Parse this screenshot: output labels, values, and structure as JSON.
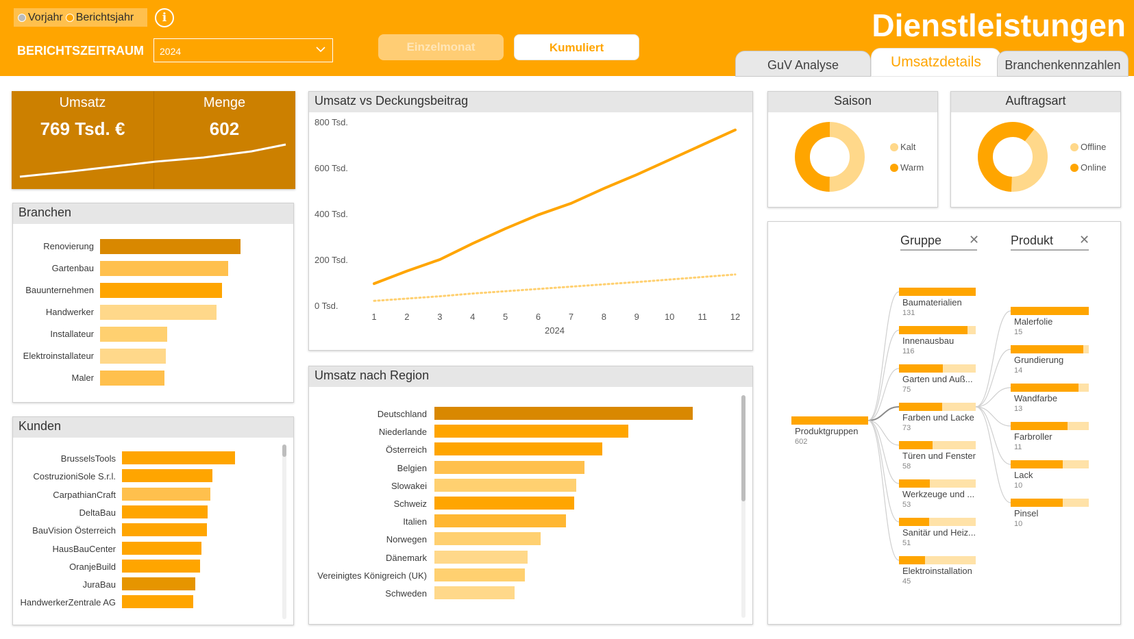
{
  "header": {
    "toggle_prev": "Vorjahr",
    "toggle_report": "Berichtsjahr",
    "info_icon": "i",
    "period_label": "BERICHTSZEITRAUM",
    "period_value": "2024",
    "btn_single": "Einzelmonat",
    "btn_cumulative": "Kumuliert",
    "title": "Dienstleistungen",
    "tabs": [
      {
        "label": "GuV Analyse"
      },
      {
        "label": "Umsatzdetails"
      },
      {
        "label": "Branchenkennzahlen"
      }
    ],
    "active_tab": "Umsatzdetails"
  },
  "colors": {
    "header_bg": "#FFA500",
    "dark": "#CC8000",
    "medium": "#FFA500",
    "light": "#FFC04D",
    "pale": "#FFD88A",
    "remainder": "#FFE2A8"
  },
  "kpi": {
    "umsatz_label": "Umsatz",
    "umsatz_value": "769 Tsd. €",
    "menge_label": "Menge",
    "menge_value": "602"
  },
  "branchen": {
    "title": "Branchen",
    "items": [
      {
        "label": "Renovierung",
        "value": 100,
        "color": "#D98800"
      },
      {
        "label": "Gartenbau",
        "value": 91,
        "color": "#FFC04D"
      },
      {
        "label": "Bauunternehmen",
        "value": 87,
        "color": "#FFA500"
      },
      {
        "label": "Handwerker",
        "value": 83,
        "color": "#FFD88A"
      },
      {
        "label": "Installateur",
        "value": 48,
        "color": "#FFD070"
      },
      {
        "label": "Elektroinstallateur",
        "value": 47,
        "color": "#FFD88A"
      },
      {
        "label": "Maler",
        "value": 46,
        "color": "#FFC04D"
      }
    ]
  },
  "kunden": {
    "title": "Kunden",
    "items": [
      {
        "label": "BrusselsTools",
        "value": 100,
        "color": "#FFA500"
      },
      {
        "label": "CostruzioniSole S.r.l.",
        "value": 80,
        "color": "#FFA500"
      },
      {
        "label": "CarpathianCraft",
        "value": 78,
        "color": "#FFC04D"
      },
      {
        "label": "DeltaBau",
        "value": 76,
        "color": "#FFA500"
      },
      {
        "label": "BauVision Österreich",
        "value": 75,
        "color": "#FFA500"
      },
      {
        "label": "HausBauCenter",
        "value": 70,
        "color": "#FFA500"
      },
      {
        "label": "OranjeBuild",
        "value": 69,
        "color": "#FFA500"
      },
      {
        "label": "JuraBau",
        "value": 65,
        "color": "#E69500"
      },
      {
        "label": "HandwerkerZentrale AG",
        "value": 63,
        "color": "#FFA500"
      }
    ]
  },
  "umsatz_chart": {
    "title": "Umsatz vs Deckungsbeitrag"
  },
  "chart_data": {
    "type": "line",
    "x": [
      1,
      2,
      3,
      4,
      5,
      6,
      7,
      8,
      9,
      10,
      11,
      12
    ],
    "xlabel": "2024",
    "ylim": [
      0,
      800000
    ],
    "yticks": [
      "0 Tsd.",
      "200 Tsd.",
      "400 Tsd.",
      "600 Tsd.",
      "800 Tsd."
    ],
    "series": [
      {
        "values": [
          95000,
          150000,
          200000,
          270000,
          335000,
          395000,
          445000,
          510000,
          570000,
          635000,
          700000,
          765000
        ],
        "style": "solid"
      },
      {
        "values": [
          20000,
          30000,
          40000,
          52000,
          62000,
          72000,
          82000,
          92000,
          102000,
          113000,
          124000,
          135000
        ],
        "style": "dotted"
      }
    ]
  },
  "saison": {
    "title": "Saison",
    "slices": [
      {
        "label": "Kalt",
        "value": 50,
        "color": "#FFD88A"
      },
      {
        "label": "Warm",
        "value": 50,
        "color": "#FFA500"
      }
    ]
  },
  "auftragsart": {
    "title": "Auftragsart",
    "slices": [
      {
        "label": "Offline",
        "value": 40,
        "color": "#FFD88A"
      },
      {
        "label": "Online",
        "value": 60,
        "color": "#FFA500"
      }
    ]
  },
  "region": {
    "title": "Umsatz nach Region",
    "items": [
      {
        "label": "Deutschland",
        "value": 100,
        "color": "#D98800"
      },
      {
        "label": "Niederlande",
        "value": 75,
        "color": "#FFA500"
      },
      {
        "label": "Österreich",
        "value": 65,
        "color": "#FFA500"
      },
      {
        "label": "Belgien",
        "value": 58,
        "color": "#FFC04D"
      },
      {
        "label": "Slowakei",
        "value": 55,
        "color": "#FFD070"
      },
      {
        "label": "Schweiz",
        "value": 54,
        "color": "#FFA500"
      },
      {
        "label": "Italien",
        "value": 51,
        "color": "#FFB732"
      },
      {
        "label": "Norwegen",
        "value": 41,
        "color": "#FFD070"
      },
      {
        "label": "Dänemark",
        "value": 36,
        "color": "#FFD88A"
      },
      {
        "label": "Vereinigtes Königreich (UK)",
        "value": 35,
        "color": "#FFD070"
      },
      {
        "label": "Schweden",
        "value": 31,
        "color": "#FFD88A"
      }
    ]
  },
  "decomposition": {
    "gruppe_header": "Gruppe",
    "produkt_header": "Produkt",
    "root": {
      "label": "Produktgruppen",
      "value": "602"
    },
    "gruppen": [
      {
        "label": "Baumaterialien",
        "value": "131",
        "fraction": 1.0
      },
      {
        "label": "Innenausbau",
        "value": "116",
        "fraction": 0.89
      },
      {
        "label": "Garten und Auß...",
        "value": "75",
        "fraction": 0.57
      },
      {
        "label": "Farben und Lacke",
        "value": "73",
        "fraction": 0.56
      },
      {
        "label": "Türen und Fenster",
        "value": "58",
        "fraction": 0.44
      },
      {
        "label": "Werkzeuge und ...",
        "value": "53",
        "fraction": 0.4
      },
      {
        "label": "Sanitär und Heiz...",
        "value": "51",
        "fraction": 0.39
      },
      {
        "label": "Elektroinstallation",
        "value": "45",
        "fraction": 0.34
      }
    ],
    "produkte": [
      {
        "label": "Malerfolie",
        "value": "15",
        "fraction": 1.0
      },
      {
        "label": "Grundierung",
        "value": "14",
        "fraction": 0.93
      },
      {
        "label": "Wandfarbe",
        "value": "13",
        "fraction": 0.87
      },
      {
        "label": "Farbroller",
        "value": "11",
        "fraction": 0.73
      },
      {
        "label": "Lack",
        "value": "10",
        "fraction": 0.67
      },
      {
        "label": "Pinsel",
        "value": "10",
        "fraction": 0.67
      }
    ]
  }
}
